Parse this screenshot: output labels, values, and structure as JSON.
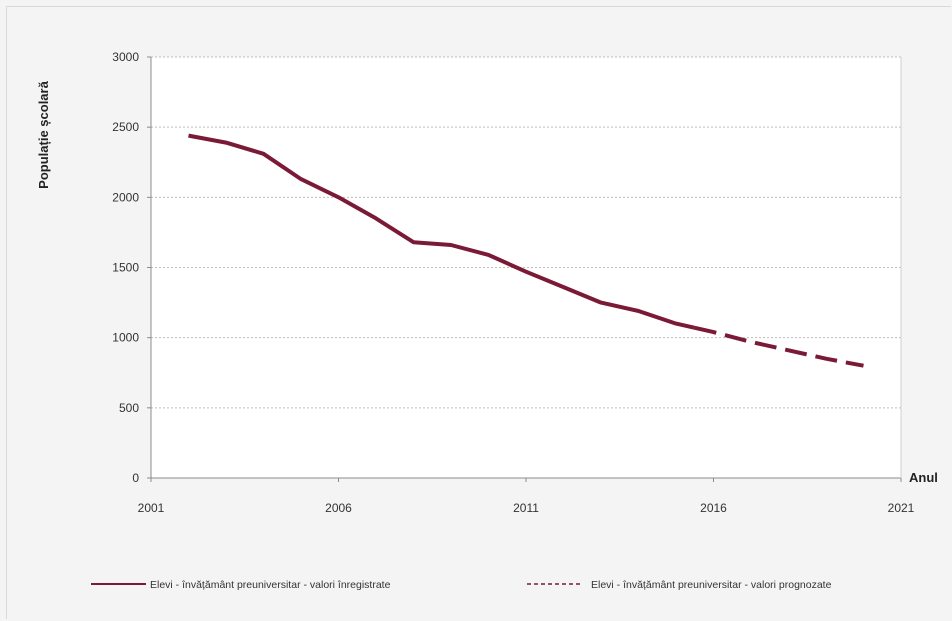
{
  "chart_data": {
    "type": "line",
    "title": "",
    "xlabel": "Anul",
    "ylabel": "Populație școlară",
    "xlim": [
      2001,
      2021
    ],
    "ylim": [
      0,
      3000
    ],
    "x_ticks": [
      "2001",
      "2006",
      "2011",
      "2016",
      "2021"
    ],
    "y_ticks": [
      "0",
      "500",
      "1000",
      "1500",
      "2000",
      "2500",
      "3000"
    ],
    "grid": "horizontal-dotted",
    "legend_position": "bottom",
    "series": [
      {
        "name": "Elevi - învățământ preuniversitar - valori înregistrate",
        "style": "solid",
        "color": "#7a1a36",
        "points": [
          [
            2002,
            2440
          ],
          [
            2003,
            2390
          ],
          [
            2004,
            2310
          ],
          [
            2005,
            2130
          ],
          [
            2006,
            2000
          ],
          [
            2007,
            1850
          ],
          [
            2008,
            1680
          ],
          [
            2009,
            1660
          ],
          [
            2010,
            1590
          ],
          [
            2011,
            1470
          ],
          [
            2012,
            1360
          ],
          [
            2013,
            1250
          ],
          [
            2014,
            1190
          ],
          [
            2015,
            1100
          ],
          [
            2015.5,
            1070
          ]
        ]
      },
      {
        "name": "Elevi - învățământ preuniversitar - valori prognozate",
        "style": "dashed",
        "color": "#7a1a36",
        "points": [
          [
            2015.5,
            1070
          ],
          [
            2016,
            1040
          ],
          [
            2017,
            970
          ],
          [
            2018,
            910
          ],
          [
            2019,
            850
          ],
          [
            2020,
            800
          ]
        ]
      }
    ]
  }
}
